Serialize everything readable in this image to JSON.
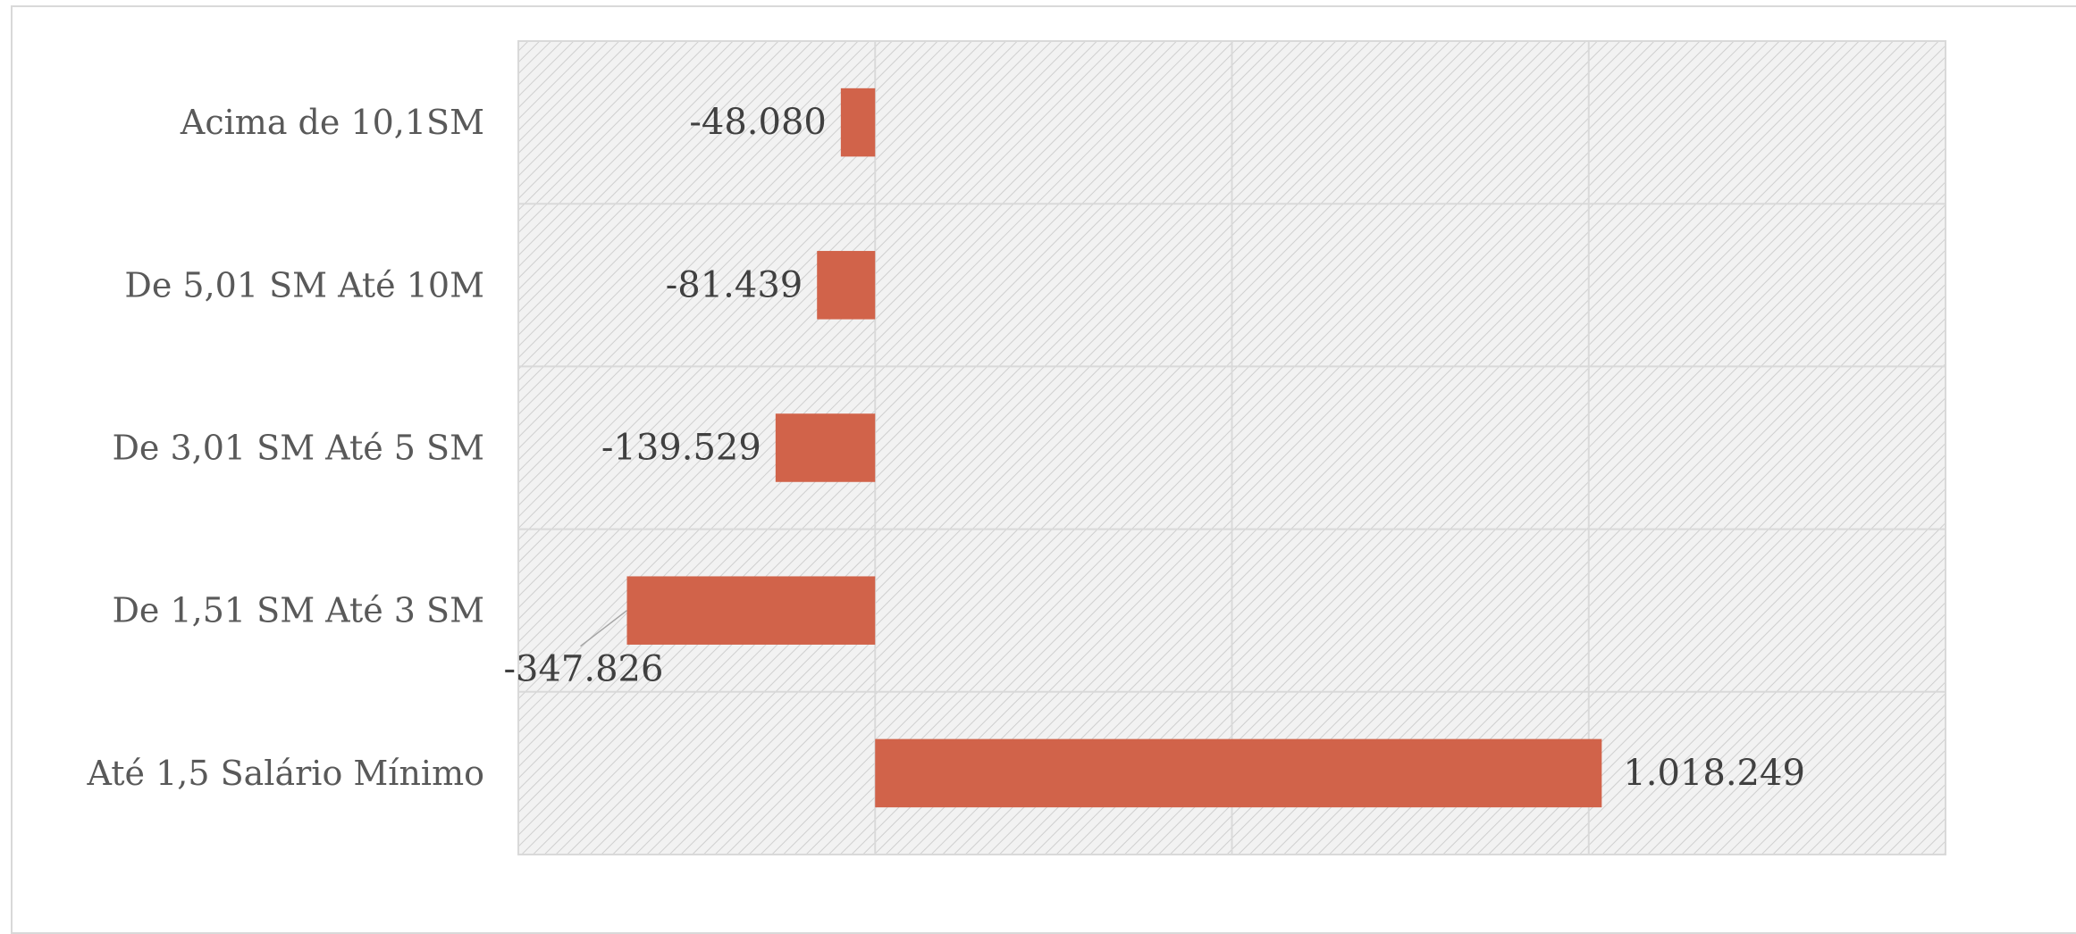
{
  "chart_data": {
    "type": "bar",
    "orientation": "horizontal",
    "title": "",
    "xlabel": "",
    "ylabel": "",
    "categories": [
      "Acima de 10,1SM",
      "De 5,01 SM Até 10M",
      "De 3,01 SM Até 5 SM",
      "De 1,51 SM Até 3 SM",
      "Até 1,5 Salário Mínimo"
    ],
    "values": [
      -48080,
      -81439,
      -139529,
      -347826,
      1018249
    ],
    "data_labels": [
      "-48.080",
      "-81.439",
      "-139.529",
      "-347.826",
      "1.018.249"
    ],
    "xlim": [
      -500000,
      1500000
    ],
    "x_gridline_step": 500000,
    "x_tick_labels_visible": false,
    "grid": true,
    "plot_background": "diagonal-hatch",
    "legend": "none",
    "colors": {
      "bar": "#d1634a",
      "grid": "#d9d9d9",
      "hatch": "#cfcfcf",
      "category_text": "#595959",
      "label_text": "#404040"
    }
  }
}
